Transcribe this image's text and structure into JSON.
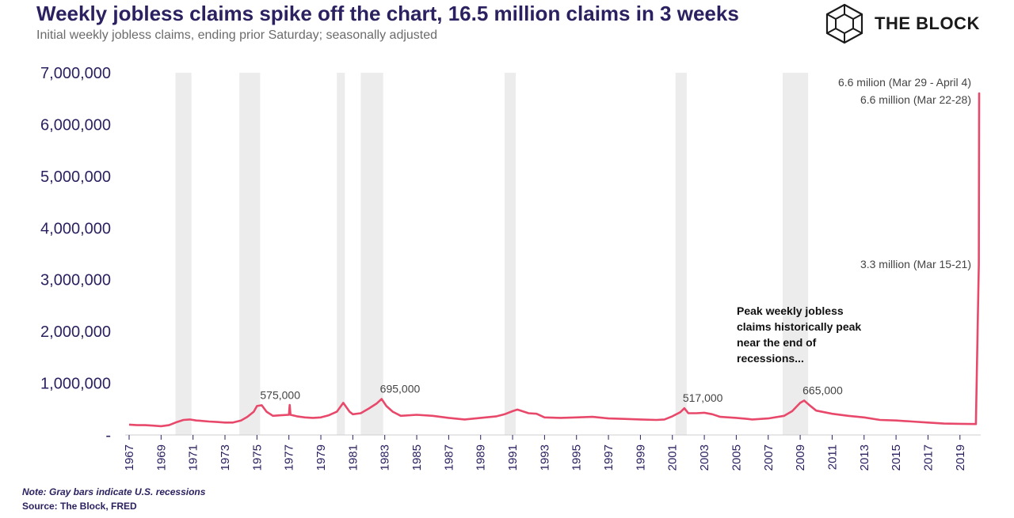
{
  "header": {
    "title": "Weekly jobless claims spike off the chart, 16.5 million claims in 3 weeks",
    "subtitle": "Initial weekly jobless claims, ending prior Saturday; seasonally adjusted",
    "brand": "THE BLOCK"
  },
  "footer": {
    "note": "Note: Gray bars indicate U.S. recessions",
    "source": "Source: The Block, FRED"
  },
  "colors": {
    "line": "#e8496b",
    "recession": "#ececec",
    "axis_text": "#2b2160"
  },
  "chart_data": {
    "type": "line",
    "title": "Weekly jobless claims spike off the chart, 16.5 million claims in 3 weeks",
    "subtitle": "Initial weekly jobless claims, ending prior Saturday; seasonally adjusted",
    "xlabel": "",
    "ylabel": "",
    "xlim": [
      1967,
      2020.3
    ],
    "ylim": [
      0,
      7000000
    ],
    "y_ticks": [
      0,
      1000000,
      2000000,
      3000000,
      4000000,
      5000000,
      6000000,
      7000000
    ],
    "y_tick_labels": [
      "-",
      "1,000,000",
      "2,000,000",
      "3,000,000",
      "4,000,000",
      "5,000,000",
      "6,000,000",
      "7,000,000"
    ],
    "x_ticks": [
      1967,
      1969,
      1971,
      1973,
      1975,
      1977,
      1979,
      1981,
      1983,
      1985,
      1987,
      1989,
      1991,
      1993,
      1995,
      1997,
      1999,
      2001,
      2003,
      2005,
      2007,
      2009,
      2011,
      2013,
      2015,
      2017,
      2019
    ],
    "grid": false,
    "recessions": [
      [
        1969.9,
        1970.9
      ],
      [
        1973.9,
        1975.2
      ],
      [
        1980.0,
        1980.5
      ],
      [
        1981.5,
        1982.9
      ],
      [
        1990.5,
        1991.2
      ],
      [
        2001.2,
        2001.9
      ],
      [
        2007.9,
        2009.5
      ]
    ],
    "series": [
      {
        "x": [
          1967.0,
          1967.5,
          1968.0,
          1968.5,
          1969.0,
          1969.5,
          1970.0,
          1970.4,
          1970.8,
          1971.2,
          1971.6,
          1972.0,
          1972.5,
          1973.0,
          1973.5,
          1974.0,
          1974.4,
          1974.8,
          1975.0,
          1975.3,
          1975.6,
          1976.0,
          1976.5,
          1977.0,
          1977.05,
          1977.1,
          1977.5,
          1978.0,
          1978.5,
          1979.0,
          1979.5,
          1980.0,
          1980.4,
          1980.8,
          1981.0,
          1981.5,
          1982.0,
          1982.5,
          1982.8,
          1983.1,
          1983.5,
          1984.0,
          1985.0,
          1986.0,
          1987.0,
          1988.0,
          1989.0,
          1990.0,
          1990.5,
          1991.0,
          1991.3,
          1992.0,
          1992.5,
          1993.0,
          1994.0,
          1995.0,
          1996.0,
          1997.0,
          1998.0,
          1999.0,
          2000.0,
          2000.5,
          2001.0,
          2001.5,
          2001.75,
          2002.0,
          2002.5,
          2003.0,
          2003.5,
          2004.0,
          2005.0,
          2005.7,
          2006.0,
          2007.0,
          2008.0,
          2008.5,
          2009.0,
          2009.25,
          2009.6,
          2010.0,
          2011.0,
          2012.0,
          2013.0,
          2014.0,
          2015.0,
          2016.0,
          2017.0,
          2018.0,
          2019.0,
          2020.0,
          2020.18,
          2020.2,
          2020.22,
          2020.24,
          2020.26
        ],
        "values": [
          200000,
          190000,
          190000,
          180000,
          170000,
          190000,
          250000,
          290000,
          300000,
          280000,
          270000,
          260000,
          250000,
          240000,
          240000,
          280000,
          350000,
          450000,
          560000,
          575000,
          450000,
          370000,
          380000,
          390000,
          580000,
          390000,
          360000,
          340000,
          330000,
          340000,
          380000,
          450000,
          620000,
          450000,
          400000,
          420000,
          510000,
          610000,
          695000,
          560000,
          450000,
          370000,
          390000,
          370000,
          330000,
          300000,
          330000,
          360000,
          400000,
          460000,
          490000,
          420000,
          410000,
          340000,
          330000,
          340000,
          350000,
          320000,
          310000,
          300000,
          290000,
          300000,
          360000,
          440000,
          517000,
          420000,
          420000,
          430000,
          400000,
          350000,
          330000,
          310000,
          300000,
          320000,
          370000,
          460000,
          620000,
          665000,
          570000,
          470000,
          410000,
          370000,
          340000,
          290000,
          280000,
          260000,
          240000,
          220000,
          215000,
          211000,
          3300000,
          6600000,
          6600000,
          6600000,
          6600000
        ]
      }
    ],
    "annotations": [
      {
        "x": 1975.3,
        "y": 575000,
        "text": "575,000"
      },
      {
        "x": 1982.8,
        "y": 695000,
        "text": "695,000"
      },
      {
        "x": 2001.75,
        "y": 517000,
        "text": "517,000"
      },
      {
        "x": 2009.25,
        "y": 665000,
        "text": "665,000"
      },
      {
        "x": 2020.2,
        "y": 3300000,
        "text": "3.3 million (Mar 15-21)"
      },
      {
        "x": 2020.22,
        "y": 6600000,
        "text": "6.6 million (Mar 22-28)"
      },
      {
        "x": 2020.24,
        "y": 6600000,
        "text": "6.6 milion (Mar 29 - April 4)"
      }
    ],
    "note": [
      "Peak weekly jobless",
      "claims historically peak",
      "near the end of",
      "recessions..."
    ]
  }
}
